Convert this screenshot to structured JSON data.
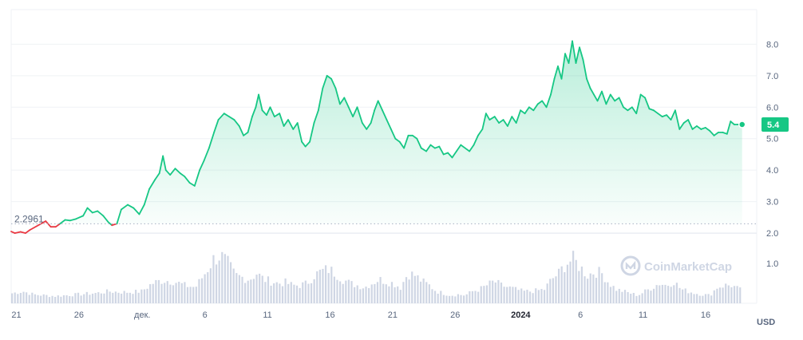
{
  "chart_data": {
    "type": "area",
    "unit": "USD",
    "current_value": "5.4",
    "reference_value": 2.2961,
    "reference_label": "2.2961",
    "y_ticks": [
      "2.0",
      "3.0",
      "4.0",
      "5.0",
      "6.0",
      "7.0",
      "8.0"
    ],
    "volume_tick": "1.0",
    "ylim": [
      1.85,
      9.1
    ],
    "xlim": [
      0,
      100
    ],
    "x_ticks": [
      {
        "label": "21",
        "x": 0.5
      },
      {
        "label": "26",
        "x": 9.2
      },
      {
        "label": "дек.",
        "x": 18.0
      },
      {
        "label": "6",
        "x": 26.7
      },
      {
        "label": "11",
        "x": 35.4
      },
      {
        "label": "16",
        "x": 44.1
      },
      {
        "label": "21",
        "x": 52.8
      },
      {
        "label": "26",
        "x": 61.5
      },
      {
        "label": "2024",
        "x": 70.6,
        "bold": true
      },
      {
        "label": "6",
        "x": 78.9
      },
      {
        "label": "11",
        "x": 87.6
      },
      {
        "label": "16",
        "x": 96.3
      }
    ],
    "grid": true,
    "colors": {
      "up": "#16c784",
      "down": "#ea3943",
      "volume": "#cfd6e4",
      "badge": "#16c784"
    },
    "price_series": [
      [
        0.0,
        2.05
      ],
      [
        0.5,
        2.0
      ],
      [
        1.3,
        2.04
      ],
      [
        2.0,
        2.0
      ],
      [
        2.6,
        2.1
      ],
      [
        4.8,
        2.38
      ],
      [
        5.5,
        2.2
      ],
      [
        6.2,
        2.2
      ],
      [
        6.8,
        2.3
      ],
      [
        7.5,
        2.42
      ],
      [
        8.2,
        2.4
      ],
      [
        9.0,
        2.45
      ],
      [
        10.0,
        2.55
      ],
      [
        10.6,
        2.8
      ],
      [
        11.3,
        2.65
      ],
      [
        12.0,
        2.7
      ],
      [
        12.8,
        2.55
      ],
      [
        13.5,
        2.35
      ],
      [
        14.0,
        2.25
      ],
      [
        14.7,
        2.3
      ],
      [
        15.3,
        2.75
      ],
      [
        16.2,
        2.9
      ],
      [
        17.0,
        2.8
      ],
      [
        17.8,
        2.6
      ],
      [
        18.5,
        2.9
      ],
      [
        19.2,
        3.4
      ],
      [
        20.0,
        3.7
      ],
      [
        20.6,
        3.9
      ],
      [
        21.1,
        4.45
      ],
      [
        21.5,
        4.0
      ],
      [
        22.1,
        3.85
      ],
      [
        22.8,
        4.05
      ],
      [
        23.5,
        3.9
      ],
      [
        24.1,
        3.8
      ],
      [
        24.8,
        3.6
      ],
      [
        25.5,
        3.5
      ],
      [
        26.2,
        4.0
      ],
      [
        26.8,
        4.3
      ],
      [
        27.5,
        4.7
      ],
      [
        28.2,
        5.2
      ],
      [
        28.8,
        5.6
      ],
      [
        29.6,
        5.8
      ],
      [
        30.3,
        5.7
      ],
      [
        31.0,
        5.6
      ],
      [
        31.7,
        5.4
      ],
      [
        32.3,
        5.1
      ],
      [
        32.9,
        5.2
      ],
      [
        33.5,
        5.7
      ],
      [
        34.0,
        6.0
      ],
      [
        34.4,
        6.4
      ],
      [
        34.9,
        5.9
      ],
      [
        35.5,
        5.75
      ],
      [
        36.0,
        6.0
      ],
      [
        36.6,
        5.7
      ],
      [
        37.3,
        5.8
      ],
      [
        37.9,
        5.4
      ],
      [
        38.5,
        5.6
      ],
      [
        39.2,
        5.3
      ],
      [
        39.8,
        5.5
      ],
      [
        40.4,
        4.9
      ],
      [
        40.9,
        4.75
      ],
      [
        41.5,
        4.9
      ],
      [
        42.1,
        5.5
      ],
      [
        42.7,
        5.9
      ],
      [
        43.3,
        6.6
      ],
      [
        43.9,
        7.0
      ],
      [
        44.5,
        6.9
      ],
      [
        45.1,
        6.6
      ],
      [
        45.7,
        6.1
      ],
      [
        46.3,
        6.3
      ],
      [
        46.9,
        6.0
      ],
      [
        47.5,
        5.7
      ],
      [
        48.1,
        6.0
      ],
      [
        48.8,
        5.5
      ],
      [
        49.4,
        5.3
      ],
      [
        50.0,
        5.5
      ],
      [
        50.5,
        5.9
      ],
      [
        51.0,
        6.2
      ],
      [
        51.6,
        5.9
      ],
      [
        52.2,
        5.6
      ],
      [
        52.8,
        5.3
      ],
      [
        53.4,
        5.0
      ],
      [
        54.0,
        4.9
      ],
      [
        54.6,
        4.7
      ],
      [
        55.2,
        5.1
      ],
      [
        55.8,
        5.1
      ],
      [
        56.4,
        5.0
      ],
      [
        57.0,
        4.7
      ],
      [
        57.7,
        4.6
      ],
      [
        58.3,
        4.8
      ],
      [
        58.9,
        4.7
      ],
      [
        59.5,
        4.75
      ],
      [
        60.1,
        4.5
      ],
      [
        60.7,
        4.55
      ],
      [
        61.3,
        4.4
      ],
      [
        61.9,
        4.6
      ],
      [
        62.5,
        4.8
      ],
      [
        63.1,
        4.7
      ],
      [
        63.7,
        4.6
      ],
      [
        64.3,
        4.8
      ],
      [
        64.9,
        5.1
      ],
      [
        65.5,
        5.3
      ],
      [
        66.0,
        5.8
      ],
      [
        66.5,
        5.6
      ],
      [
        67.2,
        5.7
      ],
      [
        67.8,
        5.5
      ],
      [
        68.4,
        5.6
      ],
      [
        69.0,
        5.4
      ],
      [
        69.6,
        5.7
      ],
      [
        70.2,
        5.5
      ],
      [
        70.8,
        5.9
      ],
      [
        71.4,
        5.8
      ],
      [
        72.0,
        6.0
      ],
      [
        72.6,
        5.9
      ],
      [
        73.2,
        6.1
      ],
      [
        73.8,
        6.2
      ],
      [
        74.4,
        6.0
      ],
      [
        75.0,
        6.4
      ],
      [
        75.5,
        6.9
      ],
      [
        76.0,
        7.3
      ],
      [
        76.5,
        6.9
      ],
      [
        77.0,
        7.7
      ],
      [
        77.5,
        7.4
      ],
      [
        78.0,
        8.1
      ],
      [
        78.5,
        7.4
      ],
      [
        79.0,
        7.9
      ],
      [
        79.5,
        7.5
      ],
      [
        80.0,
        6.9
      ],
      [
        80.5,
        6.6
      ],
      [
        81.0,
        6.4
      ],
      [
        81.5,
        6.2
      ],
      [
        82.1,
        6.5
      ],
      [
        82.7,
        6.1
      ],
      [
        83.3,
        6.4
      ],
      [
        83.9,
        6.2
      ],
      [
        84.5,
        6.3
      ],
      [
        85.1,
        6.0
      ],
      [
        85.7,
        5.9
      ],
      [
        86.3,
        6.0
      ],
      [
        86.9,
        5.8
      ],
      [
        87.5,
        6.4
      ],
      [
        88.1,
        6.3
      ],
      [
        88.7,
        5.95
      ],
      [
        89.3,
        5.9
      ],
      [
        89.9,
        5.8
      ],
      [
        90.5,
        5.7
      ],
      [
        91.1,
        5.75
      ],
      [
        91.7,
        5.6
      ],
      [
        92.3,
        5.9
      ],
      [
        92.9,
        5.3
      ],
      [
        93.5,
        5.5
      ],
      [
        94.1,
        5.6
      ],
      [
        94.7,
        5.3
      ],
      [
        95.3,
        5.4
      ],
      [
        95.9,
        5.3
      ],
      [
        96.5,
        5.35
      ],
      [
        97.1,
        5.25
      ],
      [
        97.7,
        5.1
      ],
      [
        98.3,
        5.2
      ],
      [
        98.9,
        5.2
      ],
      [
        99.5,
        5.15
      ],
      [
        100.0,
        5.55
      ],
      [
        100.5,
        5.45
      ],
      [
        101.0,
        5.45
      ],
      [
        101.6,
        5.45
      ]
    ],
    "volume_series": [
      [
        0,
        0.25
      ],
      [
        1.5,
        0.3
      ],
      [
        3,
        0.22
      ],
      [
        4.5,
        0.2
      ],
      [
        6,
        0.18
      ],
      [
        7.5,
        0.2
      ],
      [
        9,
        0.22
      ],
      [
        10.5,
        0.24
      ],
      [
        12,
        0.26
      ],
      [
        13.5,
        0.3
      ],
      [
        15,
        0.28
      ],
      [
        16.5,
        0.28
      ],
      [
        18,
        0.3
      ],
      [
        19.5,
        0.5
      ],
      [
        21,
        0.58
      ],
      [
        22.5,
        0.55
      ],
      [
        24,
        0.45
      ],
      [
        25.5,
        0.4
      ],
      [
        27,
        0.8
      ],
      [
        28,
        1.1
      ],
      [
        29,
        1.2
      ],
      [
        30,
        1.0
      ],
      [
        31,
        0.7
      ],
      [
        32,
        0.65
      ],
      [
        33,
        0.6
      ],
      [
        34,
        0.75
      ],
      [
        35,
        0.6
      ],
      [
        36,
        0.55
      ],
      [
        37,
        0.5
      ],
      [
        38,
        0.52
      ],
      [
        39,
        0.45
      ],
      [
        40,
        0.45
      ],
      [
        41,
        0.5
      ],
      [
        42,
        0.7
      ],
      [
        43,
        0.8
      ],
      [
        44,
        0.85
      ],
      [
        45,
        0.75
      ],
      [
        46,
        0.6
      ],
      [
        47,
        0.5
      ],
      [
        48,
        0.45
      ],
      [
        49,
        0.4
      ],
      [
        50,
        0.5
      ],
      [
        51,
        0.6
      ],
      [
        52,
        0.55
      ],
      [
        53,
        0.5
      ],
      [
        54,
        0.4
      ],
      [
        55,
        0.75
      ],
      [
        56,
        0.7
      ],
      [
        57,
        0.55
      ],
      [
        58,
        0.45
      ],
      [
        59,
        0.3
      ],
      [
        60,
        0.25
      ],
      [
        61,
        0.2
      ],
      [
        62,
        0.22
      ],
      [
        63,
        0.2
      ],
      [
        64,
        0.3
      ],
      [
        65,
        0.35
      ],
      [
        66,
        0.45
      ],
      [
        67,
        0.55
      ],
      [
        68,
        0.45
      ],
      [
        69,
        0.4
      ],
      [
        70,
        0.35
      ],
      [
        71,
        0.3
      ],
      [
        72,
        0.3
      ],
      [
        73,
        0.32
      ],
      [
        74,
        0.35
      ],
      [
        75,
        0.6
      ],
      [
        76,
        0.75
      ],
      [
        77,
        1.0
      ],
      [
        78,
        1.1
      ],
      [
        79,
        0.9
      ],
      [
        80,
        0.7
      ],
      [
        81,
        0.8
      ],
      [
        82,
        0.75
      ],
      [
        83,
        0.5
      ],
      [
        84,
        0.35
      ],
      [
        85,
        0.3
      ],
      [
        86,
        0.25
      ],
      [
        87,
        0.2
      ],
      [
        88,
        0.3
      ],
      [
        89,
        0.4
      ],
      [
        90,
        0.5
      ],
      [
        91,
        0.45
      ],
      [
        92,
        0.55
      ],
      [
        93,
        0.35
      ],
      [
        94,
        0.3
      ],
      [
        95,
        0.25
      ],
      [
        96,
        0.22
      ],
      [
        97,
        0.2
      ],
      [
        98,
        0.4
      ],
      [
        99,
        0.45
      ],
      [
        100,
        0.45
      ],
      [
        101.6,
        0.3
      ]
    ]
  },
  "watermark": "CoinMarketCap"
}
